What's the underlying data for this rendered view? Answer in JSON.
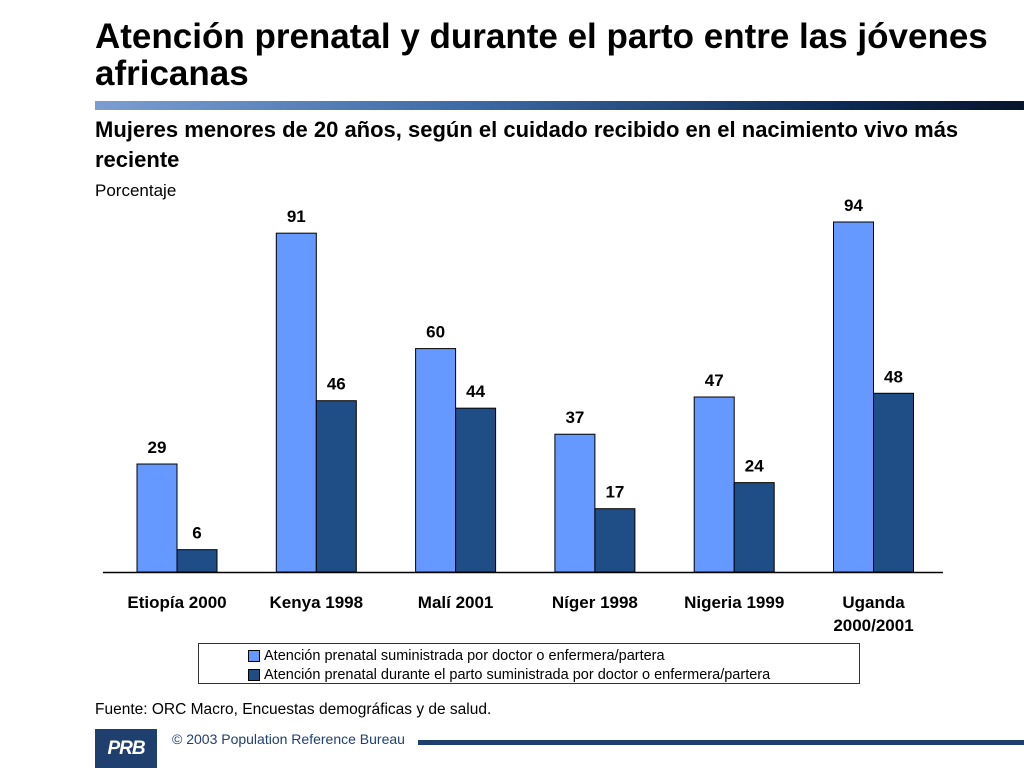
{
  "header": {
    "title": "Atención prenatal y durante el parto entre las jóvenes africanas",
    "subtitle": "Mujeres menores de 20 años, según el cuidado recibido en el nacimiento vivo más reciente"
  },
  "chart_data": {
    "type": "bar",
    "title": "Mujeres menores de 20 años, según el cuidado recibido en el nacimiento vivo más reciente",
    "ylabel": "Porcentaje",
    "xlabel": "",
    "ylim": [
      0,
      100
    ],
    "grid": false,
    "legend_position": "bottom",
    "categories": [
      [
        "Etiopía 2000"
      ],
      [
        "Kenya 1998"
      ],
      [
        "Malí 2001"
      ],
      [
        "Níger 1998"
      ],
      [
        "Nigeria 1999"
      ],
      [
        "Uganda",
        "2000/2001"
      ]
    ],
    "series": [
      {
        "name": "Atención prenatal suministrada por doctor o enfermera/partera",
        "color": "#6699ff",
        "values": [
          29,
          91,
          60,
          37,
          47,
          94
        ]
      },
      {
        "name": "Atención prenatal durante el parto suministrada por doctor o enfermera/partera",
        "color": "#1f4e86",
        "values": [
          6,
          46,
          44,
          17,
          24,
          48
        ]
      }
    ]
  },
  "footer": {
    "source": "Fuente: ORC Macro, Encuestas demográficas y de salud.",
    "logo_text": "PRB",
    "copyright": "© 2003 Population Reference Bureau",
    "accent_color": "#1f3f6f"
  }
}
